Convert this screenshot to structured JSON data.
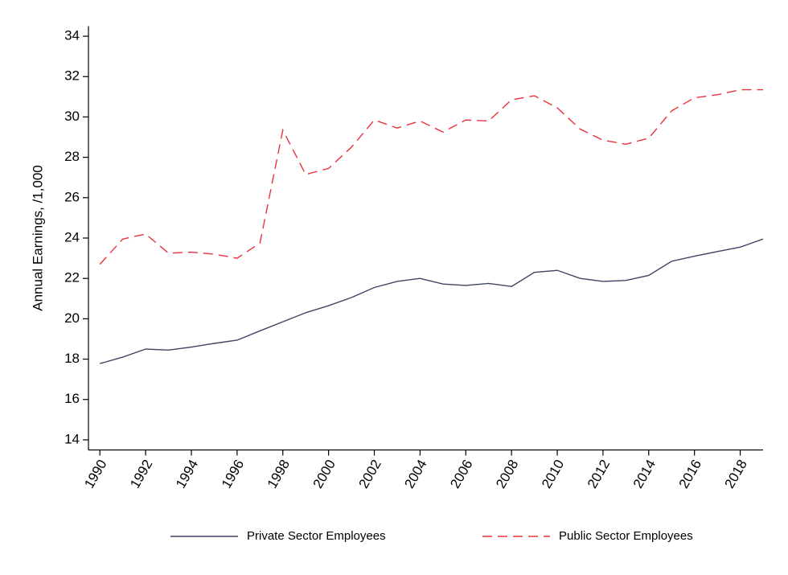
{
  "chart_data": {
    "type": "line",
    "y_label": "Annual Earnings, /1,000",
    "x": [
      1990,
      1991,
      1992,
      1993,
      1994,
      1995,
      1996,
      1997,
      1998,
      1999,
      2000,
      2001,
      2002,
      2003,
      2004,
      2005,
      2006,
      2007,
      2008,
      2009,
      2010,
      2011,
      2012,
      2013,
      2014,
      2015,
      2016,
      2017,
      2018,
      2019
    ],
    "series": [
      {
        "name": "Private Sector Employees",
        "color": "#3d4463",
        "line_style": "solid",
        "values": [
          17.78,
          18.1,
          18.5,
          18.45,
          18.6,
          18.78,
          18.94,
          19.4,
          19.85,
          20.3,
          20.65,
          21.05,
          21.55,
          21.85,
          22.0,
          21.72,
          21.65,
          21.75,
          21.6,
          22.3,
          22.4,
          22.0,
          21.85,
          21.9,
          22.15,
          22.85,
          23.1,
          23.33,
          23.55,
          23.95
        ]
      },
      {
        "name": "Public Sector Employees",
        "color": "#e8323b",
        "line_style": "dashed",
        "values": [
          22.7,
          23.95,
          24.2,
          23.25,
          23.3,
          23.2,
          23.0,
          23.75,
          29.35,
          27.15,
          27.45,
          28.5,
          29.85,
          29.45,
          29.8,
          29.25,
          29.85,
          29.8,
          30.85,
          31.05,
          30.45,
          29.4,
          28.85,
          28.65,
          28.95,
          30.3,
          30.95,
          31.1,
          31.35,
          31.35
        ]
      }
    ],
    "xlim": [
      1989.5,
      2019
    ],
    "xticks": [
      1990,
      1992,
      1994,
      1996,
      1998,
      2000,
      2002,
      2004,
      2006,
      2008,
      2010,
      2012,
      2014,
      2016,
      2018
    ],
    "ylim": [
      13.5,
      34.5
    ],
    "yticks": [
      14,
      16,
      18,
      20,
      22,
      24,
      26,
      28,
      30,
      32,
      34
    ],
    "grid": false,
    "legend": "bottom"
  }
}
